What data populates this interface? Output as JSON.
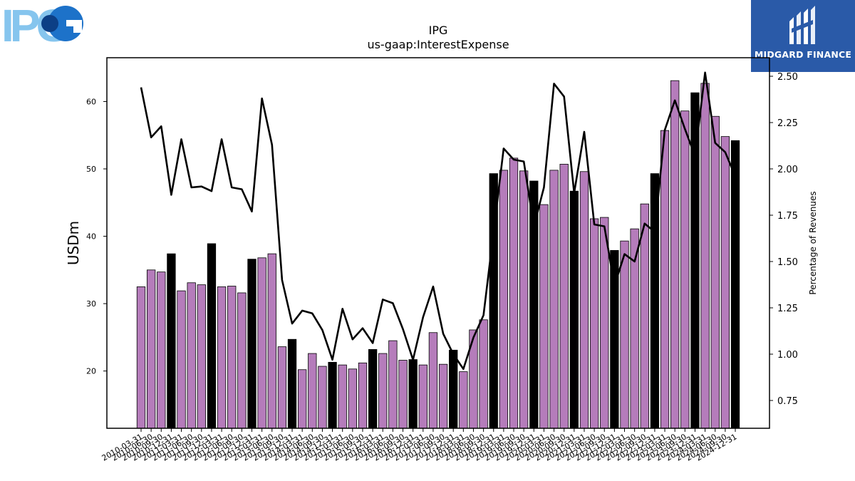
{
  "header": {
    "ipg_logo_text": "IPG",
    "brand_text": "MIDGARD FINANCE",
    "brand_color": "#2a5aa8"
  },
  "chart_data": {
    "type": "bar",
    "title": "IPG",
    "subtitle": "us-gaap:InterestExpense",
    "ylabel": "USDm",
    "y2label": "Percentage of Revenues",
    "ylim": [
      11.5,
      66.5
    ],
    "y2lim": [
      0.6,
      2.6
    ],
    "yticks": [
      20,
      30,
      40,
      50,
      60
    ],
    "y2ticks": [
      0.75,
      1.0,
      1.25,
      1.5,
      1.75,
      2.0,
      2.25,
      2.5
    ],
    "bar_color": "#b57cbb",
    "q4_bar_color": "#000000",
    "line_color": "#000000",
    "categories": [
      "2010-03-31",
      "2010-06-30",
      "2010-09-30",
      "2010-12-31",
      "2011-03-31",
      "2011-06-30",
      "2011-09-30",
      "2011-12-31",
      "2012-03-31",
      "2012-06-30",
      "2012-09-30",
      "2012-12-31",
      "2013-03-31",
      "2013-06-30",
      "2013-09-30",
      "2013-12-31",
      "2014-03-31",
      "2014-06-30",
      "2014-09-30",
      "2014-12-31",
      "2015-03-31",
      "2015-06-30",
      "2015-09-30",
      "2015-12-31",
      "2016-03-31",
      "2016-06-30",
      "2016-09-30",
      "2016-12-31",
      "2017-03-31",
      "2017-06-30",
      "2017-09-30",
      "2017-12-31",
      "2018-03-31",
      "2018-06-30",
      "2018-09-30",
      "2018-12-31",
      "2019-03-31",
      "2019-06-30",
      "2019-09-30",
      "2019-12-31",
      "2020-03-31",
      "2020-06-30",
      "2020-09-30",
      "2020-12-31",
      "2021-03-31",
      "2021-06-30",
      "2021-09-30",
      "2021-12-31",
      "2022-03-31",
      "2022-06-30",
      "2022-09-30",
      "2022-12-31",
      "2023-03-31",
      "2023-06-30",
      "2023-09-30",
      "2023-12-31",
      "2024-03-31",
      "2024-06-30",
      "2024-09-30",
      "2024-12-31"
    ],
    "series": [
      {
        "values": [
          32.5,
          35.0,
          34.7,
          37.4,
          31.9,
          33.1,
          32.8,
          38.9,
          32.5,
          32.6,
          31.6,
          36.6,
          36.8,
          37.4,
          23.6,
          24.7,
          20.2,
          22.6,
          20.7,
          21.3,
          20.9,
          20.3,
          21.2,
          23.2,
          22.6,
          24.5,
          21.6,
          21.7,
          20.9,
          25.7,
          21.0,
          23.1,
          19.9,
          26.1,
          27.6,
          49.3,
          49.8,
          51.6,
          49.7,
          48.2,
          44.7,
          49.8,
          50.7,
          46.7,
          49.6,
          42.6,
          42.8,
          37.9,
          39.3,
          41.1,
          44.8,
          49.3,
          55.7,
          63.1,
          58.6,
          61.3,
          62.7,
          57.8,
          54.8,
          54.2
        ]
      },
      {
        "axis": "right",
        "type": "line",
        "values": [
          2.44,
          2.17,
          2.23,
          1.86,
          2.16,
          1.9,
          1.905,
          1.88,
          2.16,
          1.9,
          1.89,
          1.77,
          2.38,
          2.13,
          1.4,
          1.165,
          1.235,
          1.22,
          1.13,
          0.97,
          1.245,
          1.08,
          1.14,
          1.06,
          1.295,
          1.275,
          1.135,
          0.97,
          1.2,
          1.365,
          1.11,
          1.0,
          0.92,
          1.09,
          1.21,
          1.66,
          2.11,
          2.05,
          2.04,
          1.69,
          1.9,
          2.46,
          2.39,
          1.87,
          2.2,
          1.7,
          1.69,
          1.37,
          1.54,
          1.5,
          1.705,
          1.66,
          2.21,
          2.37,
          2.215,
          2.07,
          2.52,
          2.14,
          2.09,
          1.96
        ]
      }
    ]
  }
}
